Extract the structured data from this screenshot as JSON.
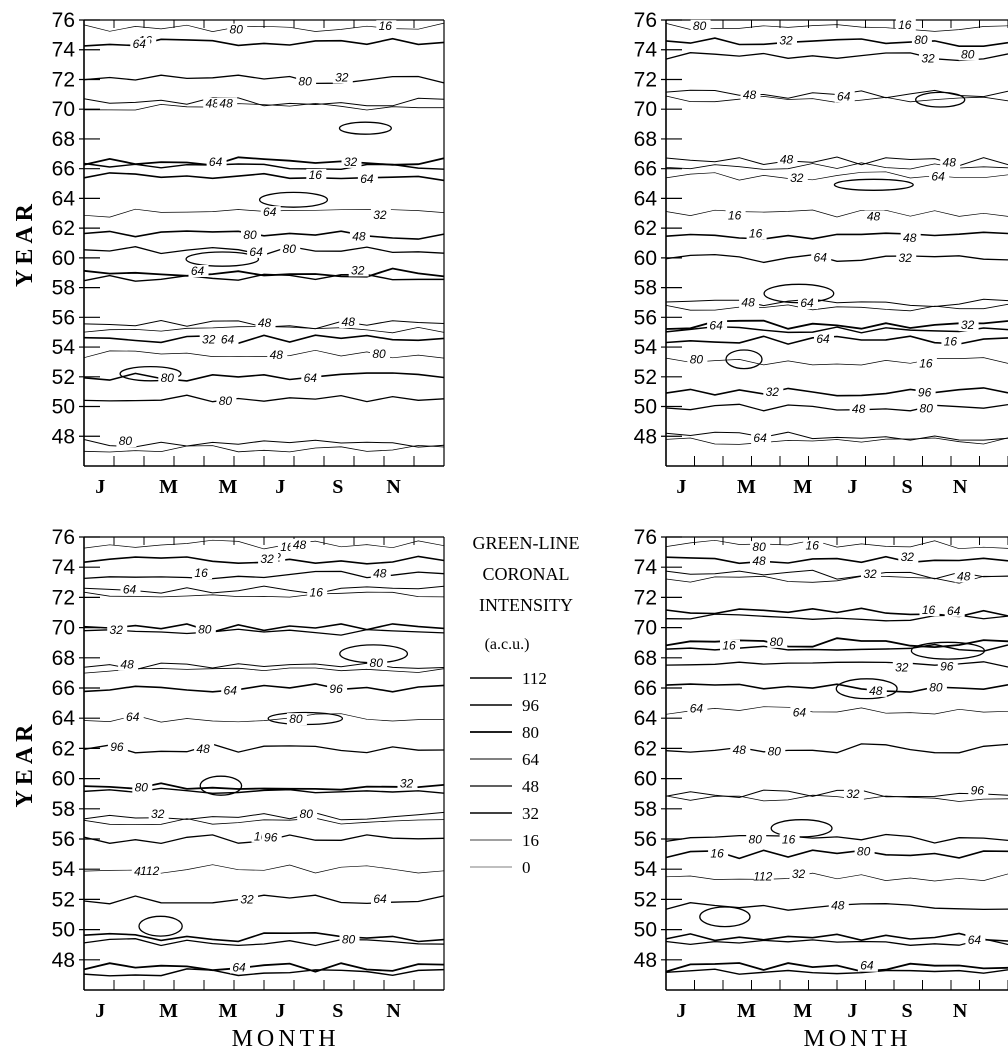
{
  "chart_data": {
    "type": "contour",
    "legend": {
      "title_lines": [
        "GREEN-LINE",
        "CORONAL",
        "INTENSITY"
      ],
      "unit": "(a.c.u.)",
      "levels": [
        112,
        96,
        80,
        64,
        48,
        32,
        16,
        0
      ]
    },
    "panels": [
      {
        "id": "top-left",
        "ylabel": "YEAR",
        "xlabel": "",
        "yticks": [
          48,
          50,
          52,
          54,
          56,
          58,
          60,
          62,
          64,
          66,
          68,
          70,
          72,
          74,
          76
        ],
        "xticks": [
          "J",
          "M",
          "M",
          "J",
          "S",
          "N"
        ],
        "ylim": [
          46,
          76
        ],
        "bands": [
          {
            "year": 75.5,
            "value": 16
          },
          {
            "year": 74.5,
            "value": 32
          },
          {
            "year": 72,
            "value": 48
          },
          {
            "year": 70.5,
            "value": 64
          },
          {
            "year": 66.5,
            "value": 80
          },
          {
            "year": 65.5,
            "value": 32
          },
          {
            "year": 63,
            "value": 16
          },
          {
            "year": 61.5,
            "value": 32
          },
          {
            "year": 60.5,
            "value": 48
          },
          {
            "year": 59,
            "value": 80
          },
          {
            "year": 55.5,
            "value": 64
          },
          {
            "year": 54.5,
            "value": 32
          },
          {
            "year": 53.5,
            "value": 16
          },
          {
            "year": 52,
            "value": 32
          },
          {
            "year": 50.5,
            "value": 48
          },
          {
            "year": 47.5,
            "value": 64
          }
        ],
        "contour_labels": [
          "16",
          "16",
          "32",
          "48",
          "64",
          "64",
          "64",
          "80",
          "80",
          "32",
          "48",
          "32",
          "48",
          "64",
          "80",
          "80",
          "80",
          "64",
          "80",
          "48",
          "32",
          "16",
          "32",
          "48",
          "64",
          "64",
          "48",
          "64",
          "80",
          "80"
        ]
      },
      {
        "id": "top-right",
        "ylabel": "",
        "xlabel": "",
        "yticks": [
          48,
          50,
          52,
          54,
          56,
          58,
          60,
          62,
          64,
          66,
          68,
          70,
          72,
          74,
          76
        ],
        "xticks": [
          "J",
          "M",
          "M",
          "J",
          "S",
          "N"
        ],
        "ylim": [
          46,
          76
        ],
        "bands": [
          {
            "year": 75.5,
            "value": 16
          },
          {
            "year": 74.5,
            "value": 32
          },
          {
            "year": 73.5,
            "value": 48
          },
          {
            "year": 71,
            "value": 64
          },
          {
            "year": 66.5,
            "value": 64
          },
          {
            "year": 65.5,
            "value": 16
          },
          {
            "year": 63,
            "value": 16
          },
          {
            "year": 61.5,
            "value": 32
          },
          {
            "year": 60,
            "value": 48
          },
          {
            "year": 57,
            "value": 64
          },
          {
            "year": 55.5,
            "value": 80
          },
          {
            "year": 54.5,
            "value": 32
          },
          {
            "year": 53,
            "value": 16
          },
          {
            "year": 51,
            "value": 32
          },
          {
            "year": 50,
            "value": 48
          },
          {
            "year": 48,
            "value": 64
          }
        ],
        "contour_labels": [
          "16",
          "32",
          "32",
          "48",
          "48",
          "64",
          "48",
          "48",
          "64",
          "64",
          "32",
          "16",
          "16",
          "32",
          "48",
          "64",
          "80",
          "80",
          "80",
          "64",
          "48",
          "32",
          "16",
          "16",
          "32",
          "48",
          "64",
          "64",
          "80",
          "96",
          "80"
        ]
      },
      {
        "id": "bottom-left",
        "ylabel": "YEAR",
        "xlabel": "MONTH",
        "yticks": [
          48,
          50,
          52,
          54,
          56,
          58,
          60,
          62,
          64,
          66,
          68,
          70,
          72,
          74,
          76
        ],
        "xticks": [
          "J",
          "M",
          "M",
          "J",
          "S",
          "N"
        ],
        "ylim": [
          46,
          76
        ],
        "bands": [
          {
            "year": 75.5,
            "value": 16
          },
          {
            "year": 74.5,
            "value": 32
          },
          {
            "year": 73.5,
            "value": 48
          },
          {
            "year": 72.5,
            "value": 64
          },
          {
            "year": 70,
            "value": 96
          },
          {
            "year": 67.5,
            "value": 64
          },
          {
            "year": 66,
            "value": 32
          },
          {
            "year": 64,
            "value": 16
          },
          {
            "year": 62,
            "value": 48
          },
          {
            "year": 59.5,
            "value": 80
          },
          {
            "year": 57.5,
            "value": 64
          },
          {
            "year": 56,
            "value": 48
          },
          {
            "year": 54,
            "value": 16
          },
          {
            "year": 52,
            "value": 48
          },
          {
            "year": 49.5,
            "value": 96
          },
          {
            "year": 47.5,
            "value": 80
          }
        ],
        "contour_labels": [
          "16",
          "32",
          "48",
          "64",
          "80",
          "80",
          "96",
          "64",
          "48",
          "32",
          "32",
          "16",
          "48",
          "64",
          "80",
          "64",
          "48",
          "32",
          "16",
          "16",
          "32",
          "48",
          "64",
          "80",
          "96",
          "80",
          "80",
          "96",
          "112",
          "32"
        ]
      },
      {
        "id": "bottom-right",
        "ylabel": "",
        "xlabel": "MONTH",
        "yticks": [
          48,
          50,
          52,
          54,
          56,
          58,
          60,
          62,
          64,
          66,
          68,
          70,
          72,
          74,
          76
        ],
        "xticks": [
          "J",
          "M",
          "M",
          "J",
          "S",
          "N"
        ],
        "ylim": [
          46,
          76
        ],
        "bands": [
          {
            "year": 75.5,
            "value": 16
          },
          {
            "year": 74.5,
            "value": 32
          },
          {
            "year": 73.5,
            "value": 64
          },
          {
            "year": 71,
            "value": 96
          },
          {
            "year": 69,
            "value": 80
          },
          {
            "year": 67.5,
            "value": 48
          },
          {
            "year": 66,
            "value": 32
          },
          {
            "year": 64.5,
            "value": 16
          },
          {
            "year": 62,
            "value": 48
          },
          {
            "year": 59,
            "value": 64
          },
          {
            "year": 56,
            "value": 48
          },
          {
            "year": 55,
            "value": 32
          },
          {
            "year": 53.5,
            "value": 16
          },
          {
            "year": 51.5,
            "value": 48
          },
          {
            "year": 49.5,
            "value": 96
          },
          {
            "year": 47.5,
            "value": 80
          }
        ],
        "contour_labels": [
          "16",
          "32",
          "48",
          "64",
          "80",
          "96",
          "80",
          "64",
          "48",
          "32",
          "16",
          "16",
          "32",
          "48",
          "64",
          "64",
          "80",
          "48",
          "32",
          "16",
          "16",
          "32",
          "48",
          "64",
          "80",
          "96",
          "80",
          "80",
          "112"
        ]
      }
    ]
  }
}
